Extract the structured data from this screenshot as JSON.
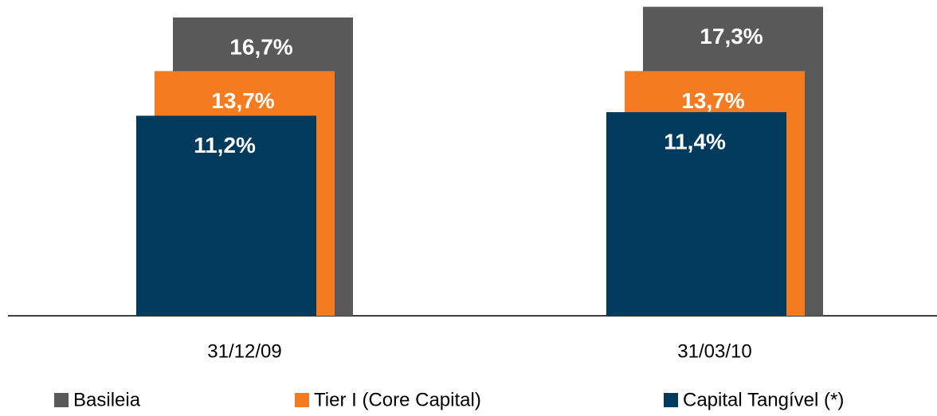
{
  "chart_data": {
    "type": "overlap-bar",
    "categories": [
      "31/12/09",
      "31/03/10"
    ],
    "ylim": [
      0,
      17.68
    ],
    "series": [
      {
        "name": "Basileia",
        "color": "#595959",
        "values": [
          16.7,
          17.3
        ],
        "value_labels": [
          "16,7%",
          "17,3%"
        ]
      },
      {
        "name": "Tier I (Core Capital)",
        "color": "#f47b20",
        "values": [
          13.7,
          13.7
        ],
        "value_labels": [
          "13,7%",
          "13,7%"
        ]
      },
      {
        "name": "Capital Tangível (*)",
        "color": "#003a5d",
        "values": [
          11.2,
          11.4
        ],
        "value_labels": [
          "11,2%",
          "11,4%"
        ]
      }
    ]
  }
}
